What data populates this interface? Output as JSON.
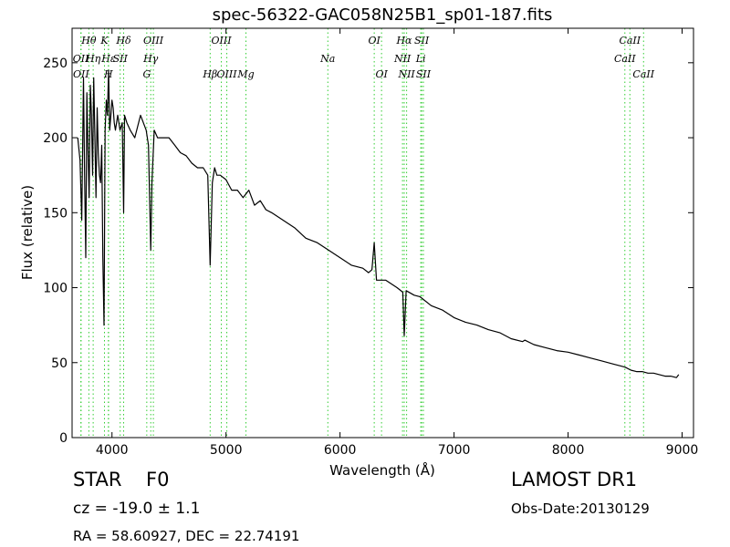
{
  "chart_data": {
    "type": "line",
    "title": "spec-56322-GAC058N25B1_sp01-187.fits",
    "xlabel": "Wavelength (Å)",
    "ylabel": "Flux (relative)",
    "xlim": [
      3650,
      9100
    ],
    "ylim": [
      0,
      273
    ],
    "xticks": [
      4000,
      5000,
      6000,
      7000,
      8000,
      9000
    ],
    "yticks": [
      0,
      50,
      100,
      150,
      200,
      250
    ],
    "grid": false,
    "series": [
      {
        "color": "#000000",
        "x": [
          3700,
          3720,
          3735,
          3750,
          3760,
          3770,
          3780,
          3790,
          3800,
          3810,
          3820,
          3830,
          3840,
          3850,
          3860,
          3870,
          3880,
          3890,
          3900,
          3910,
          3920,
          3930,
          3940,
          3950,
          3960,
          3970,
          3980,
          3990,
          4000,
          4010,
          4020,
          4030,
          4050,
          4070,
          4090,
          4102,
          4110,
          4130,
          4160,
          4200,
          4250,
          4300,
          4320,
          4340,
          4350,
          4370,
          4400,
          4450,
          4500,
          4550,
          4600,
          4650,
          4700,
          4750,
          4800,
          4840,
          4861,
          4880,
          4900,
          4920,
          4950,
          5000,
          5050,
          5100,
          5150,
          5200,
          5250,
          5300,
          5350,
          5400,
          5500,
          5600,
          5700,
          5800,
          5900,
          6000,
          6100,
          6200,
          6250,
          6280,
          6300,
          6320,
          6400,
          6500,
          6550,
          6563,
          6580,
          6650,
          6700,
          6800,
          6900,
          7000,
          7100,
          7200,
          7300,
          7400,
          7500,
          7600,
          7620,
          7700,
          7800,
          7900,
          8000,
          8100,
          8200,
          8300,
          8400,
          8450,
          8500,
          8550,
          8600,
          8650,
          8700,
          8750,
          8800,
          8850,
          8900,
          8950,
          8970
        ],
        "y": [
          200,
          185,
          145,
          240,
          175,
          120,
          230,
          190,
          160,
          235,
          215,
          175,
          240,
          200,
          160,
          220,
          190,
          175,
          170,
          195,
          120,
          75,
          205,
          225,
          215,
          245,
          205,
          215,
          225,
          220,
          210,
          205,
          215,
          205,
          210,
          150,
          215,
          210,
          205,
          200,
          215,
          205,
          195,
          125,
          170,
          205,
          200,
          200,
          200,
          195,
          190,
          188,
          183,
          180,
          180,
          175,
          115,
          170,
          180,
          175,
          175,
          172,
          165,
          165,
          160,
          165,
          155,
          158,
          152,
          150,
          145,
          140,
          133,
          130,
          125,
          120,
          115,
          113,
          110,
          112,
          130,
          105,
          105,
          100,
          97,
          68,
          98,
          95,
          94,
          88,
          85,
          80,
          77,
          75,
          72,
          70,
          66,
          64,
          65,
          62,
          60,
          58,
          57,
          55,
          53,
          51,
          49,
          48,
          47,
          45,
          44,
          44,
          43,
          43,
          42,
          41,
          41,
          40,
          42
        ]
      }
    ],
    "line_markers": {
      "color": "#32cd32",
      "top_row_1": [
        {
          "label": "Hθ",
          "x": 3797
        },
        {
          "label": "K",
          "x": 3934
        },
        {
          "label": "Hδ",
          "x": 4102
        },
        {
          "label": "OIII",
          "x": 4363
        },
        {
          "label": "OIII",
          "x": 4959
        },
        {
          "label": "OI",
          "x": 6300
        },
        {
          "label": "Hα",
          "x": 6563
        },
        {
          "label": "SII",
          "x": 6716
        },
        {
          "label": "CaII",
          "x": 8542
        }
      ],
      "top_row_2": [
        {
          "label": "OII",
          "x": 3727
        },
        {
          "label": "Hη",
          "x": 3835
        },
        {
          "label": "Hε",
          "x": 3970
        },
        {
          "label": "SII",
          "x": 4072
        },
        {
          "label": "Hγ",
          "x": 4340
        },
        {
          "label": "Na",
          "x": 5893
        },
        {
          "label": "NII",
          "x": 6548
        },
        {
          "label": "Li",
          "x": 6708
        },
        {
          "label": "CaII",
          "x": 8498
        }
      ],
      "top_row_3": [
        {
          "label": "OII",
          "x": 3729
        },
        {
          "label": "H",
          "x": 3968
        },
        {
          "label": "G",
          "x": 4305
        },
        {
          "label": "Hβ",
          "x": 4861
        },
        {
          "label": "OIII",
          "x": 5007
        },
        {
          "label": "Mg",
          "x": 5175
        },
        {
          "label": "OI",
          "x": 6364
        },
        {
          "label": "NII",
          "x": 6584
        },
        {
          "label": "SII",
          "x": 6731
        },
        {
          "label": "CaII",
          "x": 8662
        }
      ]
    }
  },
  "info": {
    "object_class": "STAR",
    "subclass": "F0",
    "survey": "LAMOST DR1",
    "redshift_text": "cz = -19.0 ± 1.1",
    "obs_date": "Obs-Date:20130129",
    "coordinates": "RA = 58.60927, DEC = 22.74191"
  }
}
